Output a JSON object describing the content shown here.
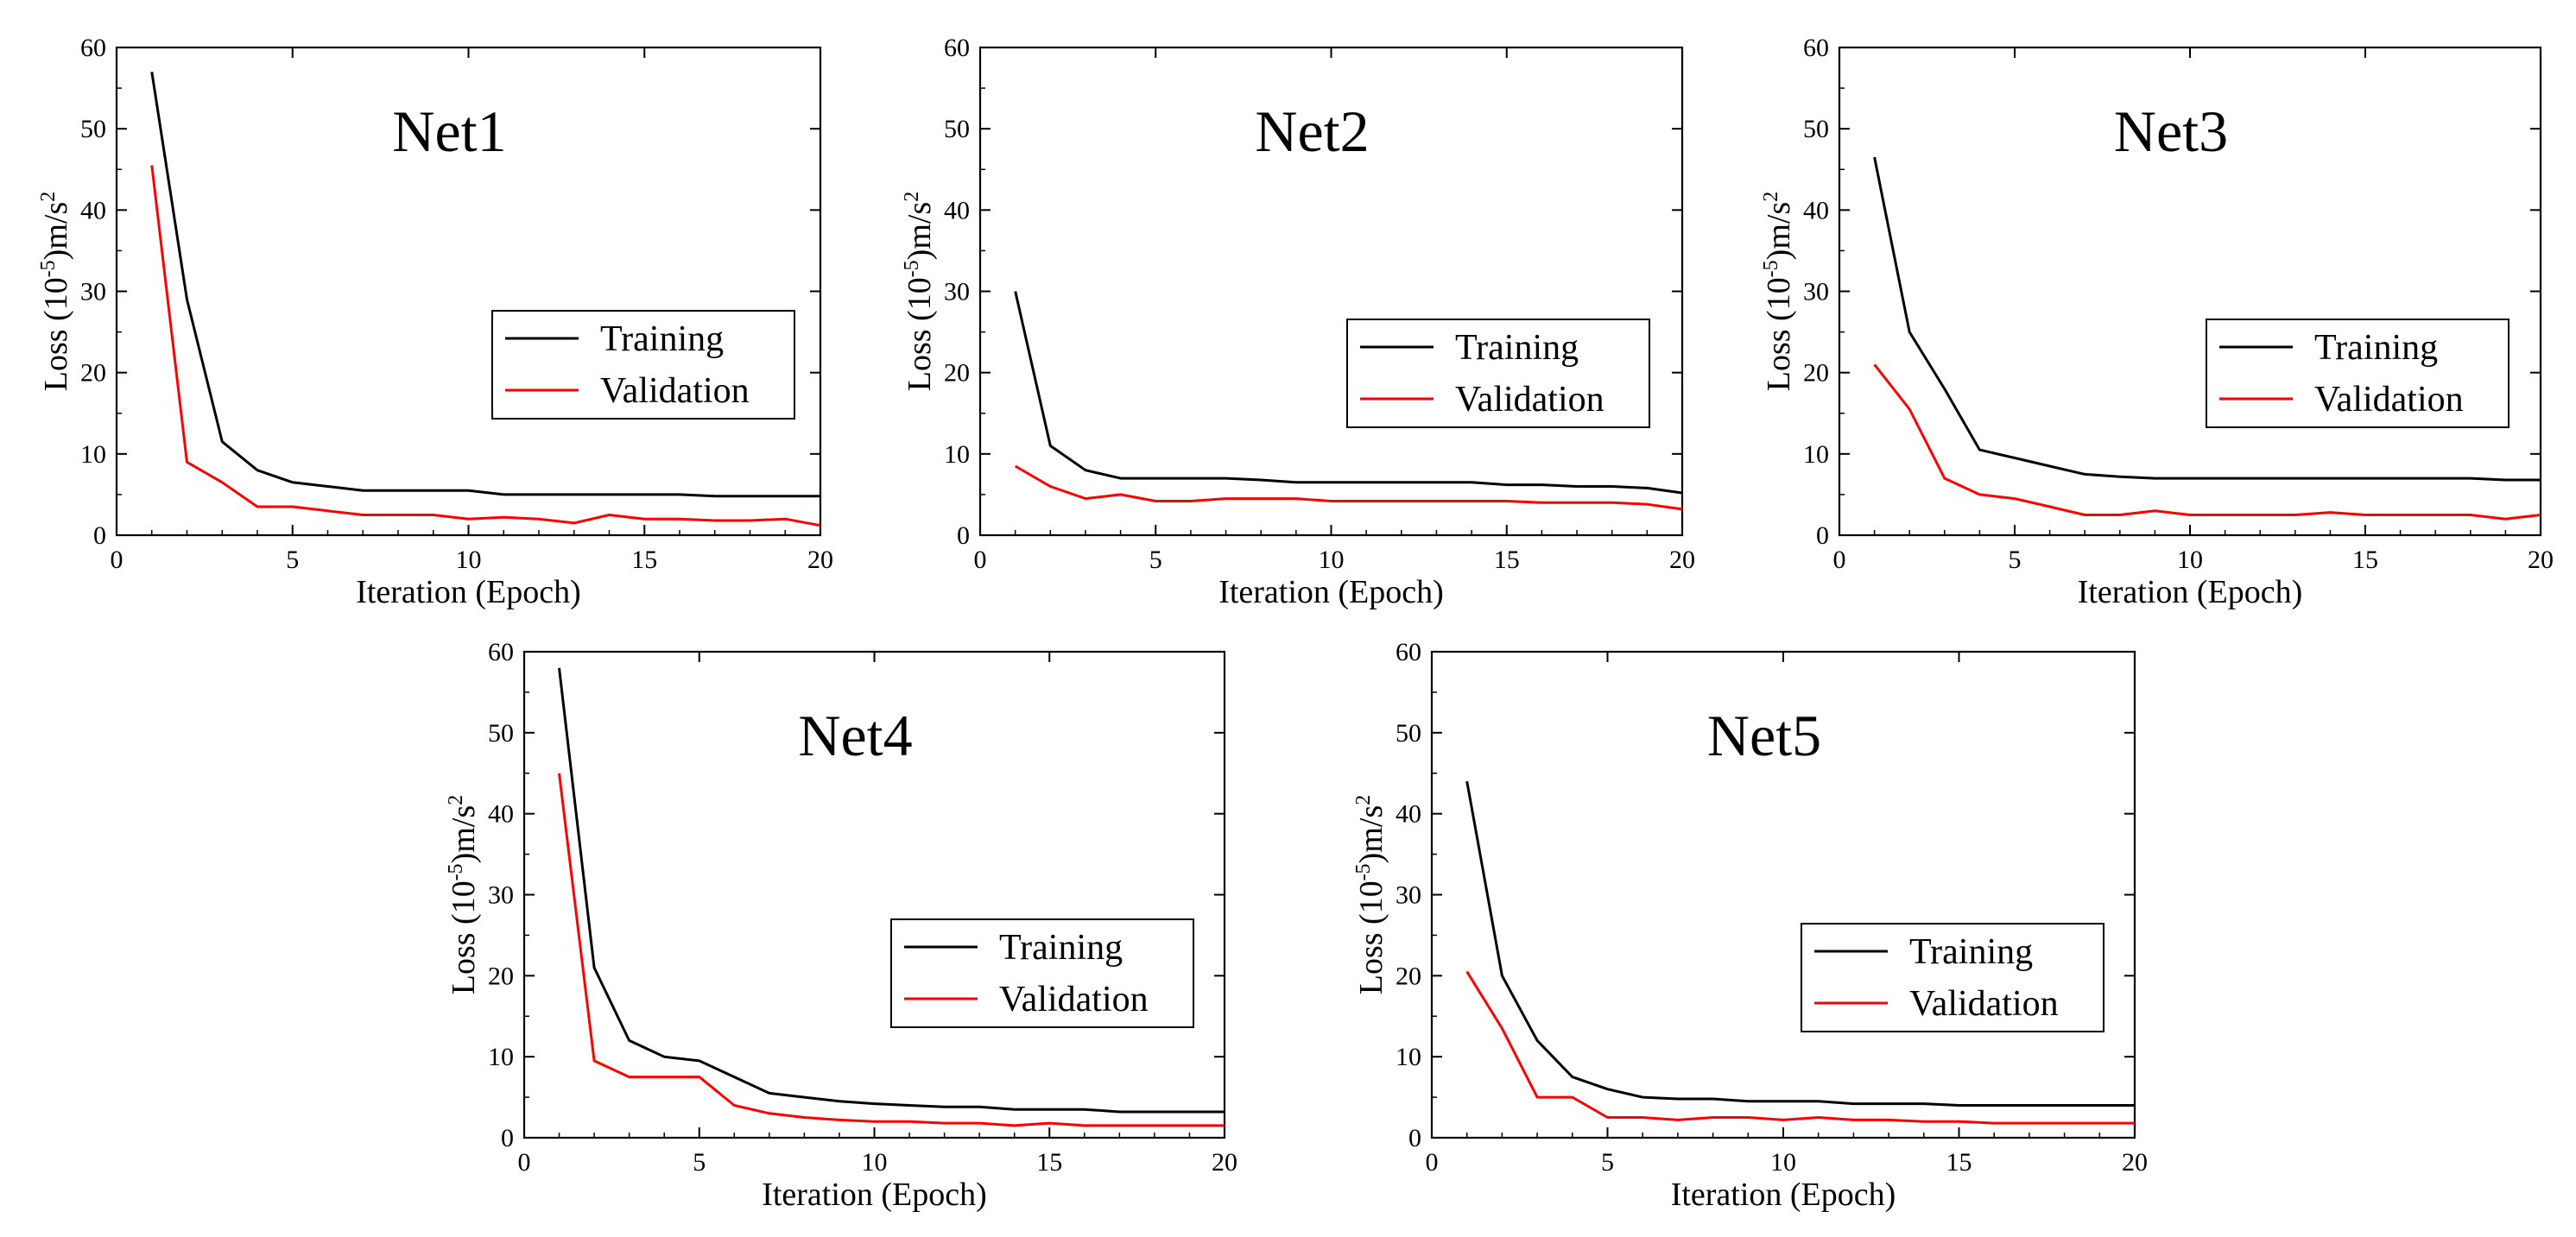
{
  "chart_data": [
    {
      "type": "line",
      "title": "Net1",
      "xlabel": "Iteration (Epoch)",
      "ylabel": "Loss (10",
      "ylabel_exponent": "-5",
      "ylabel_unit": ")m/s",
      "ylabel_unit_exponent": "2",
      "xlim": [
        0,
        20
      ],
      "ylim": [
        0,
        60
      ],
      "x_ticks": [
        "0",
        "5",
        "10",
        "15",
        "20"
      ],
      "y_ticks": [
        "0",
        "10",
        "20",
        "30",
        "40",
        "50",
        "60"
      ],
      "legend": [
        "Training",
        "Validation"
      ],
      "legend_position": "right",
      "series": [
        {
          "name": "Training",
          "color": "#000000",
          "x": [
            1,
            2,
            3,
            4,
            5,
            6,
            7,
            8,
            9,
            10,
            11,
            12,
            13,
            14,
            15,
            16,
            17,
            18,
            19,
            20
          ],
          "values": [
            57,
            29,
            11.5,
            8,
            6.5,
            6,
            5.5,
            5.5,
            5.5,
            5.5,
            5,
            5,
            5,
            5,
            5,
            5,
            4.8,
            4.8,
            4.8,
            4.8
          ]
        },
        {
          "name": "Validation",
          "color": "#ff0000",
          "x": [
            1,
            2,
            3,
            4,
            5,
            6,
            7,
            8,
            9,
            10,
            11,
            12,
            13,
            14,
            15,
            16,
            17,
            18,
            19,
            20
          ],
          "values": [
            45.5,
            9,
            6.5,
            3.5,
            3.5,
            3,
            2.5,
            2.5,
            2.5,
            2,
            2.2,
            2,
            1.5,
            2.5,
            2,
            2,
            1.8,
            1.8,
            2,
            1.2
          ]
        }
      ]
    },
    {
      "type": "line",
      "title": "Net2",
      "xlabel": "Iteration (Epoch)",
      "ylabel": "Loss (10",
      "ylabel_exponent": "-5",
      "ylabel_unit": ")m/s",
      "ylabel_unit_exponent": "2",
      "xlim": [
        0,
        20
      ],
      "ylim": [
        0,
        60
      ],
      "x_ticks": [
        "0",
        "5",
        "10",
        "15",
        "20"
      ],
      "y_ticks": [
        "0",
        "10",
        "20",
        "30",
        "40",
        "50",
        "60"
      ],
      "legend": [
        "Training",
        "Validation"
      ],
      "legend_position": "right",
      "series": [
        {
          "name": "Training",
          "color": "#000000",
          "x": [
            1,
            2,
            3,
            4,
            5,
            6,
            7,
            8,
            9,
            10,
            11,
            12,
            13,
            14,
            15,
            16,
            17,
            18,
            19,
            20
          ],
          "values": [
            30,
            11,
            8,
            7,
            7,
            7,
            7,
            6.8,
            6.5,
            6.5,
            6.5,
            6.5,
            6.5,
            6.5,
            6.2,
            6.2,
            6,
            6,
            5.8,
            5.2
          ]
        },
        {
          "name": "Validation",
          "color": "#ff0000",
          "x": [
            1,
            2,
            3,
            4,
            5,
            6,
            7,
            8,
            9,
            10,
            11,
            12,
            13,
            14,
            15,
            16,
            17,
            18,
            19,
            20
          ],
          "values": [
            8.5,
            6,
            4.5,
            5,
            4.2,
            4.2,
            4.5,
            4.5,
            4.5,
            4.2,
            4.2,
            4.2,
            4.2,
            4.2,
            4.2,
            4,
            4,
            4,
            3.8,
            3.2
          ]
        }
      ]
    },
    {
      "type": "line",
      "title": "Net3",
      "xlabel": "Iteration (Epoch)",
      "ylabel": "Loss (10",
      "ylabel_exponent": "-5",
      "ylabel_unit": ")m/s",
      "ylabel_unit_exponent": "2",
      "xlim": [
        0,
        20
      ],
      "ylim": [
        0,
        60
      ],
      "x_ticks": [
        "0",
        "5",
        "10",
        "15",
        "20"
      ],
      "y_ticks": [
        "0",
        "10",
        "20",
        "30",
        "40",
        "50",
        "60"
      ],
      "legend": [
        "Training",
        "Validation"
      ],
      "legend_position": "right",
      "series": [
        {
          "name": "Training",
          "color": "#000000",
          "x": [
            1,
            2,
            3,
            4,
            5,
            6,
            7,
            8,
            9,
            10,
            11,
            12,
            13,
            14,
            15,
            16,
            17,
            18,
            19,
            20
          ],
          "values": [
            46.5,
            25,
            18,
            10.5,
            9.5,
            8.5,
            7.5,
            7.2,
            7,
            7,
            7,
            7,
            7,
            7,
            7,
            7,
            7,
            7,
            6.8,
            6.8
          ]
        },
        {
          "name": "Validation",
          "color": "#ff0000",
          "x": [
            1,
            2,
            3,
            4,
            5,
            6,
            7,
            8,
            9,
            10,
            11,
            12,
            13,
            14,
            15,
            16,
            17,
            18,
            19,
            20
          ],
          "values": [
            21,
            15.5,
            7,
            5,
            4.5,
            3.5,
            2.5,
            2.5,
            3,
            2.5,
            2.5,
            2.5,
            2.5,
            2.8,
            2.5,
            2.5,
            2.5,
            2.5,
            2,
            2.5
          ]
        }
      ]
    },
    {
      "type": "line",
      "title": "Net4",
      "xlabel": "Iteration (Epoch)",
      "ylabel": "Loss (10",
      "ylabel_exponent": "-5",
      "ylabel_unit": ")m/s",
      "ylabel_unit_exponent": "2",
      "xlim": [
        0,
        20
      ],
      "ylim": [
        0,
        60
      ],
      "x_ticks": [
        "0",
        "5",
        "10",
        "15",
        "20"
      ],
      "y_ticks": [
        "0",
        "10",
        "20",
        "30",
        "40",
        "50",
        "60"
      ],
      "legend": [
        "Training",
        "Validation"
      ],
      "legend_position": "right",
      "series": [
        {
          "name": "Training",
          "color": "#000000",
          "x": [
            1,
            2,
            3,
            4,
            5,
            6,
            7,
            8,
            9,
            10,
            11,
            12,
            13,
            14,
            15,
            16,
            17,
            18,
            19,
            20
          ],
          "values": [
            58,
            21,
            12,
            10,
            9.5,
            7.5,
            5.5,
            5,
            4.5,
            4.2,
            4,
            3.8,
            3.8,
            3.5,
            3.5,
            3.5,
            3.2,
            3.2,
            3.2,
            3.2
          ]
        },
        {
          "name": "Validation",
          "color": "#ff0000",
          "x": [
            1,
            2,
            3,
            4,
            5,
            6,
            7,
            8,
            9,
            10,
            11,
            12,
            13,
            14,
            15,
            16,
            17,
            18,
            19,
            20
          ],
          "values": [
            45,
            9.5,
            7.5,
            7.5,
            7.5,
            4,
            3,
            2.5,
            2.2,
            2,
            2,
            1.8,
            1.8,
            1.5,
            1.8,
            1.5,
            1.5,
            1.5,
            1.5,
            1.5
          ]
        }
      ]
    },
    {
      "type": "line",
      "title": "Net5",
      "xlabel": "Iteration (Epoch)",
      "ylabel": "Loss (10",
      "ylabel_exponent": "-5",
      "ylabel_unit": ")m/s",
      "ylabel_unit_exponent": "2",
      "xlim": [
        0,
        20
      ],
      "ylim": [
        0,
        60
      ],
      "x_ticks": [
        "0",
        "5",
        "10",
        "15",
        "20"
      ],
      "y_ticks": [
        "0",
        "10",
        "20",
        "30",
        "40",
        "50",
        "60"
      ],
      "legend": [
        "Training",
        "Validation"
      ],
      "legend_position": "right",
      "series": [
        {
          "name": "Training",
          "color": "#000000",
          "x": [
            1,
            2,
            3,
            4,
            5,
            6,
            7,
            8,
            9,
            10,
            11,
            12,
            13,
            14,
            15,
            16,
            17,
            18,
            19,
            20
          ],
          "values": [
            44,
            20,
            12,
            7.5,
            6,
            5,
            4.8,
            4.8,
            4.5,
            4.5,
            4.5,
            4.2,
            4.2,
            4.2,
            4,
            4,
            4,
            4,
            4,
            4
          ]
        },
        {
          "name": "Validation",
          "color": "#ff0000",
          "x": [
            1,
            2,
            3,
            4,
            5,
            6,
            7,
            8,
            9,
            10,
            11,
            12,
            13,
            14,
            15,
            16,
            17,
            18,
            19,
            20
          ],
          "values": [
            20.5,
            13.5,
            5,
            5,
            2.5,
            2.5,
            2.2,
            2.5,
            2.5,
            2.2,
            2.5,
            2.2,
            2.2,
            2,
            2,
            1.8,
            1.8,
            1.8,
            1.8,
            1.8
          ]
        }
      ]
    }
  ]
}
